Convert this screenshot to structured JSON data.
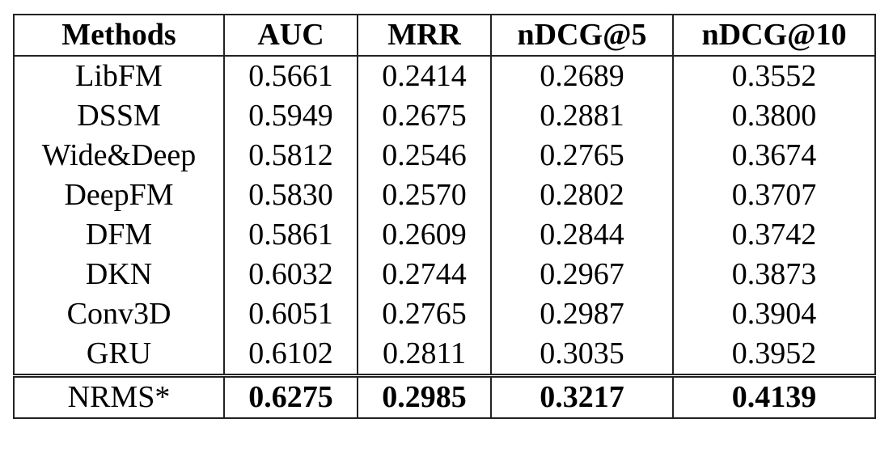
{
  "table": {
    "header": [
      "Methods",
      "AUC",
      "MRR",
      "nDCG@5",
      "nDCG@10"
    ],
    "rows": [
      [
        "LibFM",
        "0.5661",
        "0.2414",
        "0.2689",
        "0.3552"
      ],
      [
        "DSSM",
        "0.5949",
        "0.2675",
        "0.2881",
        "0.3800"
      ],
      [
        "Wide&Deep",
        "0.5812",
        "0.2546",
        "0.2765",
        "0.3674"
      ],
      [
        "DeepFM",
        "0.5830",
        "0.2570",
        "0.2802",
        "0.3707"
      ],
      [
        "DFM",
        "0.5861",
        "0.2609",
        "0.2844",
        "0.3742"
      ],
      [
        "DKN",
        "0.6032",
        "0.2744",
        "0.2967",
        "0.3873"
      ],
      [
        "Conv3D",
        "0.6051",
        "0.2765",
        "0.2987",
        "0.3904"
      ],
      [
        "GRU",
        "0.6102",
        "0.2811",
        "0.3035",
        "0.3952"
      ],
      [
        "NRMS*",
        "0.6275",
        "0.2985",
        "0.3217",
        "0.4139"
      ]
    ]
  }
}
